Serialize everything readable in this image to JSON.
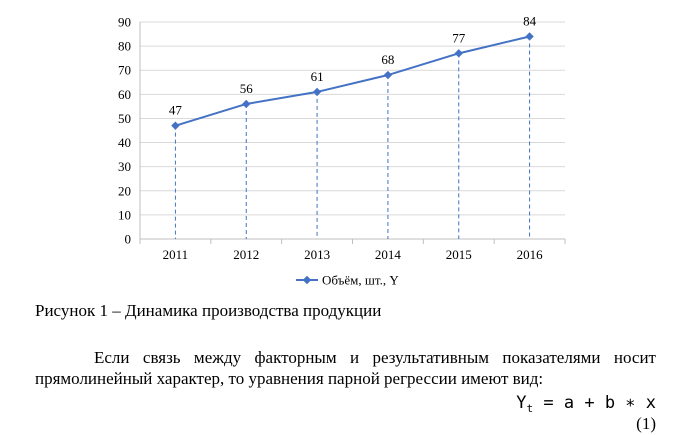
{
  "chart_data": {
    "type": "line",
    "categories": [
      "2011",
      "2012",
      "2013",
      "2014",
      "2015",
      "2016"
    ],
    "series": [
      {
        "name": "Объём, шт., Y",
        "values": [
          47,
          56,
          61,
          68,
          77,
          84
        ],
        "color": "#4472C4"
      }
    ],
    "data_labels": [
      "47",
      "56",
      "61",
      "68",
      "77",
      "84"
    ],
    "ylim": [
      0,
      90
    ],
    "yticks": [
      "0",
      "10",
      "20",
      "30",
      "40",
      "50",
      "60",
      "70",
      "80",
      "90"
    ],
    "drop_lines": true,
    "legend_position": "bottom",
    "title": "",
    "xlabel": "",
    "ylabel": ""
  },
  "caption": "Рисунок 1 – Динамика производства продукции",
  "paragraph": "Если связь между факторным и результативным показателями носит прямолинейный характер, то уравнения парной регрессии имеют вид:",
  "formula": {
    "lhs": "Y",
    "lhs_sub": "t",
    "rhs": " = a + b ∗ x"
  },
  "equation_number": "(1)"
}
